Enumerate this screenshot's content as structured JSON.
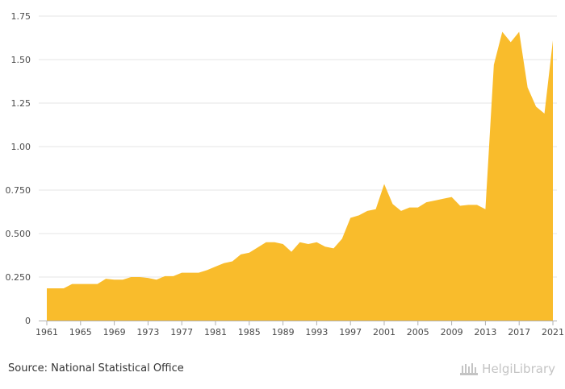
{
  "chart_data": {
    "type": "area",
    "title": "",
    "xlabel": "",
    "ylabel": "",
    "ylim": [
      0,
      1.75
    ],
    "yticks": [
      0,
      0.25,
      0.5,
      0.75,
      1.0,
      1.25,
      1.5,
      1.75
    ],
    "ytick_labels": [
      "0",
      "0.250",
      "0.500",
      "0.750",
      "1.00",
      "1.25",
      "1.50",
      "1.75"
    ],
    "xtick_labels": [
      "1961",
      "1965",
      "1969",
      "1973",
      "1977",
      "1981",
      "1985",
      "1989",
      "1993",
      "1997",
      "2001",
      "2005",
      "2009",
      "2013",
      "2017",
      "2021"
    ],
    "x": [
      1961,
      1962,
      1963,
      1964,
      1965,
      1966,
      1967,
      1968,
      1969,
      1970,
      1971,
      1972,
      1973,
      1974,
      1975,
      1976,
      1977,
      1978,
      1979,
      1980,
      1981,
      1982,
      1983,
      1984,
      1985,
      1986,
      1987,
      1988,
      1989,
      1990,
      1991,
      1992,
      1993,
      1994,
      1995,
      1996,
      1997,
      1998,
      1999,
      2000,
      2001,
      2002,
      2003,
      2004,
      2005,
      2006,
      2007,
      2008,
      2009,
      2010,
      2011,
      2012,
      2013,
      2014,
      2015,
      2016,
      2017,
      2018,
      2019,
      2020,
      2021
    ],
    "values": [
      0.185,
      0.185,
      0.185,
      0.21,
      0.21,
      0.21,
      0.21,
      0.24,
      0.235,
      0.235,
      0.25,
      0.25,
      0.245,
      0.235,
      0.255,
      0.255,
      0.275,
      0.275,
      0.275,
      0.29,
      0.31,
      0.33,
      0.34,
      0.38,
      0.39,
      0.42,
      0.45,
      0.45,
      0.44,
      0.395,
      0.45,
      0.44,
      0.45,
      0.425,
      0.415,
      0.47,
      0.59,
      0.605,
      0.63,
      0.64,
      0.785,
      0.67,
      0.63,
      0.65,
      0.65,
      0.68,
      0.69,
      0.7,
      0.71,
      0.66,
      0.665,
      0.665,
      0.64,
      1.47,
      1.66,
      1.6,
      1.66,
      1.34,
      1.23,
      1.19,
      1.61
    ],
    "color": "#f9bc2c",
    "grid": true
  },
  "footer": {
    "source": "Source: National Statistical Office",
    "brand": "HelgiLibrary"
  }
}
